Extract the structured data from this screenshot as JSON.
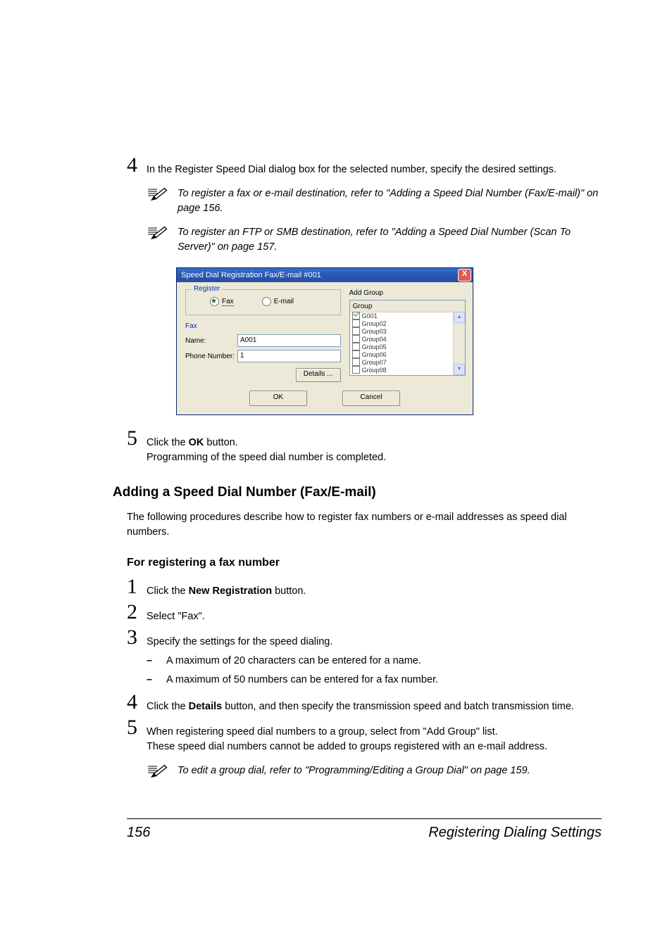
{
  "step4": {
    "num": "4",
    "text_a": "In the Register Speed Dial dialog box for the selected number, specify the desired settings."
  },
  "note1": "To register a fax or e-mail destination, refer to \"Adding a Speed Dial Number (Fax/E-mail)\" on page 156.",
  "note2": "To register an FTP or SMB destination, refer to \"Adding a Speed Dial Number (Scan To Server)\" on page 157.",
  "dialog": {
    "title": "Speed Dial Registration Fax/E-mail #001",
    "close": "X",
    "register_legend": "Register",
    "radio_fax": "Fax",
    "radio_email": "E-mail",
    "fax_label": "Fax",
    "name_label": "Name:",
    "name_value": "A001",
    "phone_label": "Phone Number:",
    "phone_value": "1",
    "details_btn": "Details ...",
    "addgroup_label": "Add Group",
    "group_header": "Group",
    "groups": [
      "G001",
      "Group02",
      "Group03",
      "Group04",
      "Group05",
      "Group06",
      "Group07",
      "Group08"
    ],
    "ok": "OK",
    "cancel": "Cancel"
  },
  "step5": {
    "num": "5",
    "prefix": "Click the ",
    "bold": "OK",
    "suffix": " button.",
    "line2": "Programming of the speed dial number is completed."
  },
  "h2": "Adding a Speed Dial Number (Fax/E-mail)",
  "para1": "The following procedures describe how to register fax numbers or e-mail addresses as speed dial numbers.",
  "h3": "For registering a fax number",
  "s1": {
    "num": "1",
    "pre": "Click the ",
    "b": "New Registration",
    "suf": " button."
  },
  "s2": {
    "num": "2",
    "text": "Select \"Fax\"."
  },
  "s3": {
    "num": "3",
    "text": "Specify the settings for the speed dialing.",
    "b1": "A maximum of 20 characters can be entered for a name.",
    "b2": "A maximum of 50 numbers can be entered for a fax number."
  },
  "s4": {
    "num": "4",
    "pre": "Click the ",
    "b": "Details",
    "suf": " button, and then specify the transmission speed and batch transmission time."
  },
  "s5": {
    "num": "5",
    "l1": "When registering speed dial numbers to a group, select from \"Add Group\" list.",
    "l2": "These speed dial numbers cannot be added to groups registered with an e-mail address."
  },
  "note3": "To edit a group dial, refer to \"Programming/Editing a Group Dial\" on page 159.",
  "footer": {
    "page": "156",
    "title": "Registering Dialing Settings"
  }
}
